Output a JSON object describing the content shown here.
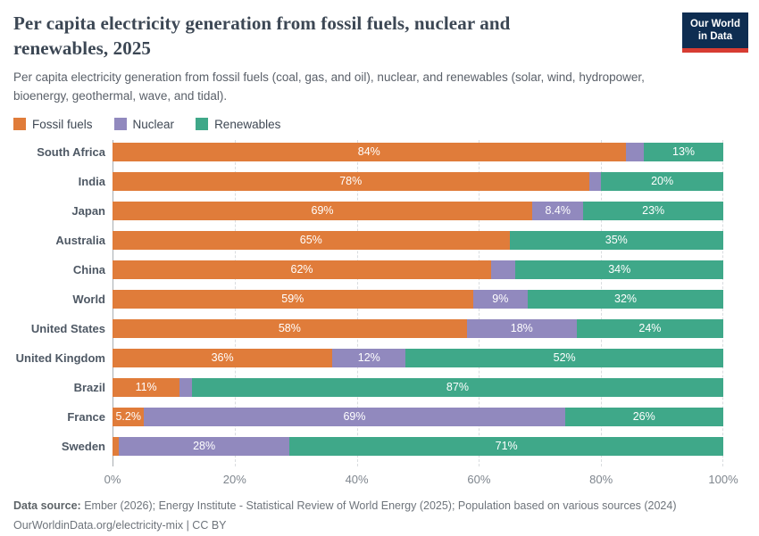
{
  "header": {
    "title": "Per capita electricity generation from fossil fuels, nuclear and renewables, 2025",
    "subtitle": "Per capita electricity generation from fossil fuels (coal, gas, and oil), nuclear, and renewables (solar, wind, hydropower, bioenergy, geothermal, wave, and tidal).",
    "logo": {
      "line1": "Our World",
      "line2": "in Data",
      "bg_color": "#0e2d51",
      "accent_color": "#d73c32"
    }
  },
  "legend": [
    {
      "label": "Fossil fuels",
      "color": "#e07c3a"
    },
    {
      "label": "Nuclear",
      "color": "#9189be"
    },
    {
      "label": "Renewables",
      "color": "#3fa889"
    }
  ],
  "chart_data": {
    "type": "bar",
    "orientation": "horizontal-stacked",
    "unit": "%",
    "xlim": [
      0,
      100
    ],
    "grid": "vertical-dashed",
    "legend_position": "top-left",
    "categories": [
      "South Africa",
      "India",
      "Japan",
      "Australia",
      "China",
      "World",
      "United States",
      "United Kingdom",
      "Brazil",
      "France",
      "Sweden"
    ],
    "series": [
      {
        "name": "Fossil fuels",
        "color": "#e07c3a",
        "values": [
          84,
          78,
          69,
          65,
          62,
          59,
          58,
          36,
          11,
          5.2,
          1
        ],
        "labels": [
          "84%",
          "78%",
          "69%",
          "65%",
          "62%",
          "59%",
          "58%",
          "36%",
          "11%",
          "5.2%",
          ""
        ]
      },
      {
        "name": "Nuclear",
        "color": "#9189be",
        "values": [
          3,
          2,
          8.4,
          0,
          4,
          9,
          18,
          12,
          2,
          69,
          28
        ],
        "labels": [
          "",
          "",
          "8.4%",
          "",
          "",
          "9%",
          "18%",
          "12%",
          "",
          "69%",
          "28%"
        ]
      },
      {
        "name": "Renewables",
        "color": "#3fa889",
        "values": [
          13,
          20,
          23,
          35,
          34,
          32,
          24,
          52,
          87,
          26,
          71
        ],
        "labels": [
          "13%",
          "20%",
          "23%",
          "35%",
          "34%",
          "32%",
          "24%",
          "52%",
          "87%",
          "26%",
          "71%"
        ]
      }
    ],
    "x_ticks": [
      {
        "pos": 0,
        "label": "0%"
      },
      {
        "pos": 20,
        "label": "20%"
      },
      {
        "pos": 40,
        "label": "40%"
      },
      {
        "pos": 60,
        "label": "60%"
      },
      {
        "pos": 80,
        "label": "80%"
      },
      {
        "pos": 100,
        "label": "100%"
      }
    ]
  },
  "footer": {
    "source_label": "Data source:",
    "source_text": " Ember (2026); Energy Institute - Statistical Review of World Energy (2025); Population based on various sources (2024)",
    "link_line": "OurWorldinData.org/electricity-mix | CC BY"
  }
}
